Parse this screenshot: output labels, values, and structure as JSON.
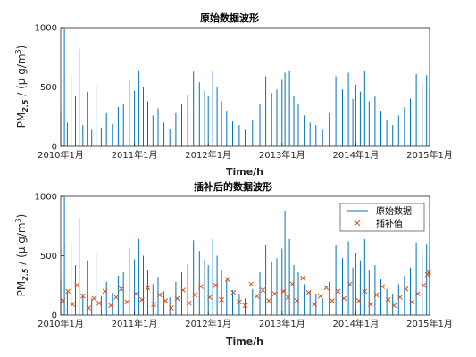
{
  "colors": {
    "series": "#0072BD",
    "interp": "#D95319",
    "axis": "#262626"
  },
  "chart_data": [
    {
      "type": "line",
      "title": "原始数据波形",
      "xlabel": "Time/h",
      "ylabel": "PM2.5 / (μ g/m³)",
      "ylabel_main": "PM",
      "ylabel_sub": "2.5",
      "ylabel_rest": " / (μ g/m",
      "ylabel_sup": "3",
      "ylabel_close": ")",
      "xlim": [
        2010,
        2015
      ],
      "ylim": [
        0,
        1000
      ],
      "xticks": [
        2010,
        2011,
        2012,
        2013,
        2014,
        2015
      ],
      "xtick_labels": [
        "2010年1月",
        "2011年1月",
        "2012年1月",
        "2013年1月",
        "2014年1月",
        "2015年1月"
      ],
      "yticks": [
        0,
        500,
        1000
      ],
      "ytick_labels": [
        "0",
        "500",
        "1000"
      ],
      "grid": false,
      "series": [
        {
          "x": [
            2010.0,
            2010.05,
            2010.09,
            2010.14,
            2010.2,
            2010.25,
            2010.3,
            2010.36,
            2010.42,
            2010.48,
            2010.55,
            2010.62,
            2010.7,
            2010.78,
            2010.85,
            2010.93,
            2011.0,
            2011.06,
            2011.12,
            2011.18,
            2011.25,
            2011.32,
            2011.4,
            2011.48,
            2011.56,
            2011.64,
            2011.72,
            2011.8,
            2011.88,
            2011.95,
            2012.0,
            2012.06,
            2012.12,
            2012.18,
            2012.25,
            2012.33,
            2012.42,
            2012.5,
            2012.6,
            2012.7,
            2012.78,
            2012.86,
            2012.93,
            2013.0,
            2013.04,
            2013.1,
            2013.16,
            2013.22,
            2013.3,
            2013.38,
            2013.46,
            2013.55,
            2013.64,
            2013.73,
            2013.82,
            2013.9,
            2013.96,
            2014.0,
            2014.06,
            2014.12,
            2014.18,
            2014.26,
            2014.34,
            2014.42,
            2014.5,
            2014.58,
            2014.66,
            2014.74,
            2014.82,
            2014.9,
            2014.96,
            2015.0
          ],
          "y": [
            300,
            995,
            200,
            590,
            420,
            820,
            180,
            460,
            140,
            520,
            160,
            280,
            190,
            330,
            360,
            560,
            470,
            640,
            500,
            380,
            260,
            320,
            200,
            150,
            280,
            360,
            430,
            630,
            540,
            470,
            420,
            640,
            500,
            380,
            300,
            210,
            180,
            140,
            220,
            360,
            590,
            450,
            480,
            560,
            620,
            640,
            420,
            360,
            260,
            200,
            180,
            140,
            280,
            590,
            480,
            620,
            400,
            520,
            460,
            640,
            380,
            420,
            300,
            220,
            180,
            260,
            330,
            400,
            610,
            520,
            600,
            480
          ]
        }
      ]
    },
    {
      "type": "line",
      "title": "插补后的数据波形",
      "xlabel": "Time/h",
      "ylabel": "PM2.5 / (μ g/m³)",
      "ylabel_main": "PM",
      "ylabel_sub": "2.5",
      "ylabel_rest": " / (μ g/m",
      "ylabel_sup": "3",
      "ylabel_close": ")",
      "xlim": [
        2010,
        2015
      ],
      "ylim": [
        0,
        1000
      ],
      "xticks": [
        2010,
        2011,
        2012,
        2013,
        2014,
        2015
      ],
      "xtick_labels": [
        "2010年1月",
        "2011年1月",
        "2012年1月",
        "2013年1月",
        "2014年1月",
        "2015年1月"
      ],
      "yticks": [
        0,
        500,
        1000
      ],
      "ytick_labels": [
        "0",
        "500",
        "1000"
      ],
      "grid": false,
      "legend": {
        "location": "top-right",
        "entries": [
          "原始数据",
          "插补值"
        ]
      },
      "series": [
        {
          "name": "原始数据",
          "marker": "line",
          "x": [
            2010.0,
            2010.05,
            2010.09,
            2010.14,
            2010.2,
            2010.25,
            2010.3,
            2010.36,
            2010.42,
            2010.48,
            2010.55,
            2010.62,
            2010.7,
            2010.78,
            2010.85,
            2010.93,
            2011.0,
            2011.06,
            2011.12,
            2011.18,
            2011.25,
            2011.32,
            2011.4,
            2011.48,
            2011.56,
            2011.64,
            2011.72,
            2011.8,
            2011.88,
            2011.95,
            2012.0,
            2012.06,
            2012.12,
            2012.18,
            2012.25,
            2012.33,
            2012.42,
            2012.5,
            2012.6,
            2012.7,
            2012.78,
            2012.86,
            2012.93,
            2013.0,
            2013.04,
            2013.1,
            2013.16,
            2013.22,
            2013.3,
            2013.38,
            2013.46,
            2013.55,
            2013.64,
            2013.73,
            2013.82,
            2013.9,
            2013.96,
            2014.0,
            2014.06,
            2014.12,
            2014.18,
            2014.26,
            2014.34,
            2014.42,
            2014.5,
            2014.58,
            2014.66,
            2014.74,
            2014.82,
            2014.9,
            2014.96,
            2015.0
          ],
          "y": [
            300,
            995,
            200,
            590,
            420,
            820,
            180,
            460,
            140,
            520,
            160,
            280,
            190,
            330,
            360,
            560,
            470,
            640,
            500,
            380,
            260,
            320,
            200,
            150,
            280,
            360,
            430,
            630,
            540,
            470,
            420,
            640,
            500,
            380,
            300,
            210,
            180,
            140,
            220,
            360,
            590,
            450,
            480,
            560,
            880,
            640,
            420,
            360,
            260,
            200,
            180,
            140,
            280,
            590,
            480,
            620,
            400,
            520,
            460,
            640,
            380,
            420,
            300,
            220,
            180,
            260,
            330,
            400,
            610,
            520,
            600,
            480
          ]
        },
        {
          "name": "插补值",
          "marker": "x",
          "x": [
            2010.03,
            2010.1,
            2010.16,
            2010.22,
            2010.3,
            2010.38,
            2010.45,
            2010.52,
            2010.6,
            2010.68,
            2010.75,
            2010.82,
            2010.9,
            2011.02,
            2011.1,
            2011.18,
            2011.26,
            2011.34,
            2011.42,
            2011.5,
            2011.58,
            2011.66,
            2011.74,
            2011.82,
            2011.9,
            2012.02,
            2012.1,
            2012.18,
            2012.26,
            2012.34,
            2012.42,
            2012.5,
            2012.58,
            2012.66,
            2012.74,
            2012.82,
            2012.9,
            2013.02,
            2013.08,
            2013.14,
            2013.2,
            2013.28,
            2013.36,
            2013.44,
            2013.52,
            2013.6,
            2013.68,
            2013.76,
            2013.84,
            2013.92,
            2014.04,
            2014.12,
            2014.2,
            2014.28,
            2014.36,
            2014.44,
            2014.52,
            2014.6,
            2014.68,
            2014.76,
            2014.84,
            2014.92,
            2014.97,
            2014.99
          ],
          "y": [
            120,
            200,
            90,
            250,
            160,
            60,
            140,
            100,
            200,
            80,
            150,
            220,
            110,
            180,
            130,
            230,
            90,
            170,
            120,
            60,
            140,
            210,
            100,
            170,
            240,
            150,
            250,
            130,
            300,
            190,
            110,
            80,
            260,
            160,
            210,
            120,
            180,
            200,
            150,
            260,
            120,
            310,
            190,
            90,
            160,
            230,
            120,
            200,
            140,
            260,
            120,
            200,
            90,
            170,
            240,
            130,
            80,
            150,
            220,
            110,
            180,
            250,
            340,
            360
          ]
        }
      ]
    }
  ]
}
